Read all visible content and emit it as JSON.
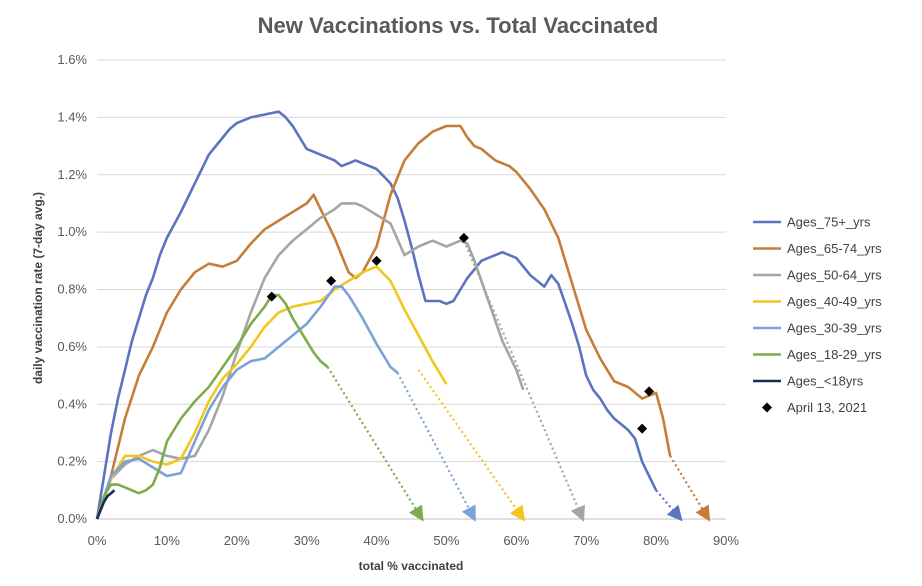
{
  "chart_data": {
    "type": "line",
    "title": "New Vaccinations vs. Total Vaccinated",
    "xlabel": "total % vaccinated",
    "ylabel": "daily vaccination rate (7-day avg.)",
    "xlim": [
      0,
      90
    ],
    "ylim": [
      0,
      1.6
    ],
    "x_ticks": [
      "0%",
      "10%",
      "20%",
      "30%",
      "40%",
      "50%",
      "60%",
      "70%",
      "80%",
      "90%"
    ],
    "y_ticks": [
      "0.0%",
      "0.2%",
      "0.4%",
      "0.6%",
      "0.8%",
      "1.0%",
      "1.2%",
      "1.4%",
      "1.6%"
    ],
    "grid": "horizontal",
    "legend_position": "right",
    "series": [
      {
        "name": "Ages_75+_yrs",
        "color": "#5b74c0",
        "x": [
          0,
          1,
          2,
          3,
          4,
          5,
          6,
          7,
          8,
          9,
          10,
          12,
          14,
          16,
          18,
          19,
          20,
          22,
          24,
          26,
          27,
          28,
          29,
          30,
          31,
          32,
          34,
          35,
          36,
          37,
          38,
          40,
          42,
          43,
          44,
          45,
          46,
          47,
          48,
          49,
          50,
          51,
          52,
          53,
          54,
          55,
          56,
          57,
          58,
          59,
          60,
          61,
          62,
          63,
          64,
          65,
          66,
          67,
          68,
          69,
          70,
          71,
          72,
          73,
          74,
          75,
          76,
          77,
          78,
          79,
          80
        ],
        "y": [
          0,
          0.15,
          0.3,
          0.42,
          0.52,
          0.62,
          0.7,
          0.78,
          0.84,
          0.92,
          0.98,
          1.07,
          1.17,
          1.27,
          1.33,
          1.36,
          1.38,
          1.4,
          1.41,
          1.42,
          1.4,
          1.37,
          1.33,
          1.29,
          1.28,
          1.27,
          1.25,
          1.23,
          1.24,
          1.25,
          1.24,
          1.22,
          1.17,
          1.12,
          1.04,
          0.95,
          0.85,
          0.76,
          0.76,
          0.76,
          0.75,
          0.76,
          0.8,
          0.84,
          0.87,
          0.9,
          0.91,
          0.92,
          0.93,
          0.92,
          0.91,
          0.88,
          0.85,
          0.83,
          0.81,
          0.85,
          0.82,
          0.75,
          0.68,
          0.6,
          0.5,
          0.45,
          0.42,
          0.38,
          0.35,
          0.33,
          0.31,
          0.28,
          0.2,
          0.15,
          0.1
        ]
      },
      {
        "name": "Ages_65-74_yrs",
        "color": "#c67d38",
        "x": [
          0,
          2,
          4,
          6,
          8,
          10,
          12,
          14,
          16,
          18,
          20,
          22,
          24,
          26,
          28,
          30,
          31,
          32,
          33,
          34,
          35,
          36,
          37,
          38,
          40,
          42,
          44,
          46,
          48,
          50,
          52,
          53,
          54,
          55,
          56,
          57,
          58,
          59,
          60,
          62,
          64,
          66,
          68,
          70,
          72,
          74,
          76,
          78,
          80,
          81,
          82
        ],
        "y": [
          0,
          0.15,
          0.35,
          0.5,
          0.6,
          0.72,
          0.8,
          0.86,
          0.89,
          0.88,
          0.9,
          0.96,
          1.01,
          1.04,
          1.07,
          1.1,
          1.13,
          1.08,
          1.03,
          0.98,
          0.92,
          0.86,
          0.84,
          0.86,
          0.95,
          1.13,
          1.25,
          1.31,
          1.35,
          1.37,
          1.37,
          1.33,
          1.3,
          1.29,
          1.27,
          1.25,
          1.24,
          1.23,
          1.21,
          1.15,
          1.08,
          0.98,
          0.82,
          0.66,
          0.56,
          0.48,
          0.46,
          0.42,
          0.44,
          0.35,
          0.22
        ]
      },
      {
        "name": "Ages_50-64_yrs",
        "color": "#a5a5a5",
        "x": [
          0,
          2,
          4,
          6,
          8,
          10,
          12,
          14,
          16,
          18,
          20,
          22,
          24,
          26,
          28,
          30,
          32,
          34,
          35,
          36,
          37,
          38,
          40,
          42,
          44,
          46,
          48,
          50,
          52,
          53,
          54,
          56,
          58,
          60,
          61
        ],
        "y": [
          0,
          0.14,
          0.19,
          0.22,
          0.24,
          0.22,
          0.21,
          0.22,
          0.31,
          0.43,
          0.58,
          0.72,
          0.84,
          0.92,
          0.97,
          1.01,
          1.05,
          1.08,
          1.1,
          1.1,
          1.1,
          1.09,
          1.06,
          1.03,
          0.92,
          0.95,
          0.97,
          0.95,
          0.97,
          0.96,
          0.9,
          0.76,
          0.62,
          0.52,
          0.45
        ]
      },
      {
        "name": "Ages_40-49_yrs",
        "color": "#f2c71d",
        "x": [
          0,
          2,
          4,
          6,
          8,
          10,
          12,
          14,
          16,
          18,
          20,
          22,
          24,
          26,
          28,
          30,
          32,
          34,
          36,
          38,
          40,
          42,
          44,
          46,
          48,
          50
        ],
        "y": [
          0,
          0.14,
          0.22,
          0.22,
          0.2,
          0.19,
          0.21,
          0.3,
          0.41,
          0.49,
          0.54,
          0.6,
          0.67,
          0.72,
          0.74,
          0.75,
          0.76,
          0.8,
          0.83,
          0.86,
          0.88,
          0.83,
          0.73,
          0.64,
          0.55,
          0.47
        ]
      },
      {
        "name": "Ages_30-39_yrs",
        "color": "#7ba1d9",
        "x": [
          0,
          2,
          4,
          6,
          8,
          10,
          12,
          14,
          16,
          18,
          20,
          22,
          24,
          26,
          28,
          30,
          32,
          34,
          35,
          36,
          38,
          40,
          42,
          43
        ],
        "y": [
          0,
          0.15,
          0.2,
          0.21,
          0.18,
          0.15,
          0.16,
          0.27,
          0.38,
          0.46,
          0.52,
          0.55,
          0.56,
          0.6,
          0.64,
          0.68,
          0.74,
          0.81,
          0.81,
          0.78,
          0.7,
          0.61,
          0.53,
          0.51
        ]
      },
      {
        "name": "Ages_18-29_yrs",
        "color": "#7fac4a",
        "x": [
          0,
          1,
          2,
          3,
          4,
          5,
          6,
          7,
          8,
          9,
          10,
          12,
          14,
          16,
          18,
          20,
          22,
          24,
          25,
          26,
          27,
          28,
          29,
          30,
          31,
          32,
          33
        ],
        "y": [
          0,
          0.08,
          0.12,
          0.12,
          0.11,
          0.1,
          0.09,
          0.1,
          0.12,
          0.18,
          0.27,
          0.35,
          0.41,
          0.46,
          0.53,
          0.6,
          0.68,
          0.74,
          0.78,
          0.78,
          0.75,
          0.7,
          0.66,
          0.62,
          0.58,
          0.55,
          0.53
        ]
      },
      {
        "name": "Ages_<18yrs",
        "color": "#1a2a57",
        "x": [
          0,
          0.5,
          1,
          1.5,
          2,
          2.5
        ],
        "y": [
          0,
          0.03,
          0.06,
          0.08,
          0.09,
          0.1
        ]
      }
    ],
    "projections": [
      {
        "color": "#5b74c0",
        "from": [
          80,
          0.1
        ],
        "to": [
          83.5,
          0
        ]
      },
      {
        "color": "#c67d38",
        "from": [
          82,
          0.22
        ],
        "to": [
          87.5,
          0
        ]
      },
      {
        "color": "#a5a5a5",
        "from": [
          52.5,
          0.97
        ],
        "to": [
          69.5,
          0
        ]
      },
      {
        "color": "#f2c71d",
        "from": [
          46,
          0.52
        ],
        "to": [
          61,
          0
        ]
      },
      {
        "color": "#7ba1d9",
        "from": [
          43,
          0.51
        ],
        "to": [
          54,
          0
        ]
      },
      {
        "color": "#7fac4a",
        "from": [
          33,
          0.53
        ],
        "to": [
          46.5,
          0
        ]
      }
    ],
    "markers": {
      "name": "April 13, 2021",
      "color": "#000000",
      "points": [
        [
          25,
          0.775
        ],
        [
          33.5,
          0.83
        ],
        [
          40,
          0.9
        ],
        [
          52.5,
          0.98
        ],
        [
          78,
          0.315
        ],
        [
          79,
          0.445
        ]
      ]
    }
  }
}
